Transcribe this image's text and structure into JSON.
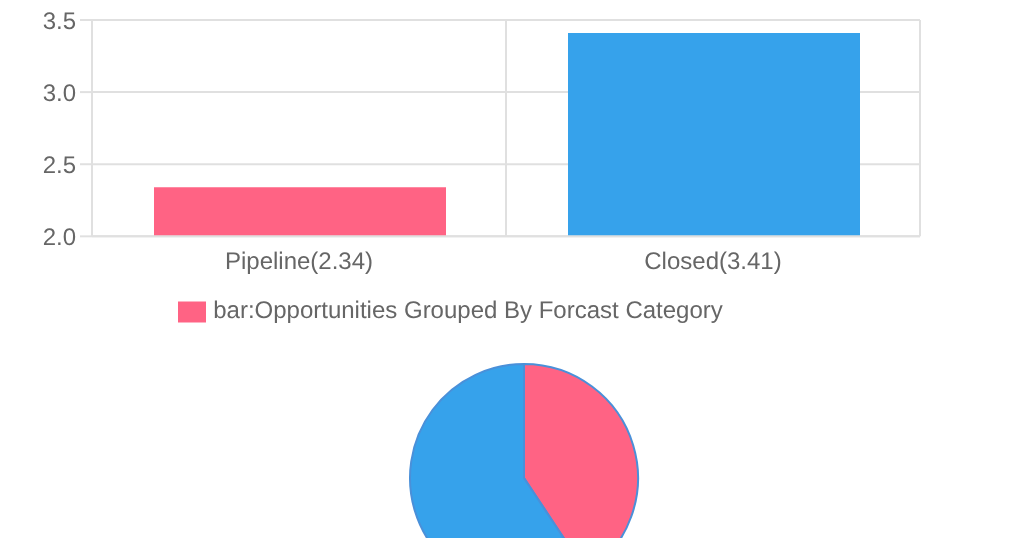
{
  "chart_data": [
    {
      "type": "bar",
      "categories": [
        "Pipeline(2.34)",
        "Closed(3.41)"
      ],
      "series": [
        {
          "name": "bar:Opportunities Grouped By Forcast Category",
          "colors": [
            "#ff6384",
            "#36a2eb"
          ],
          "values": [
            2.34,
            3.41
          ]
        }
      ],
      "ylim": [
        2.0,
        3.5
      ],
      "yticks": [
        {
          "value": 2.0,
          "label": "2.0"
        },
        {
          "value": 2.5,
          "label": "2.5"
        },
        {
          "value": 3.0,
          "label": "3.0"
        },
        {
          "value": 3.5,
          "label": "3.5"
        }
      ],
      "grid": true,
      "legend": "bottom"
    },
    {
      "type": "pie",
      "categories": [
        null,
        null
      ],
      "values": [
        40.7,
        59.3
      ],
      "colors": [
        "#ff6384",
        "#36a2eb"
      ]
    }
  ]
}
